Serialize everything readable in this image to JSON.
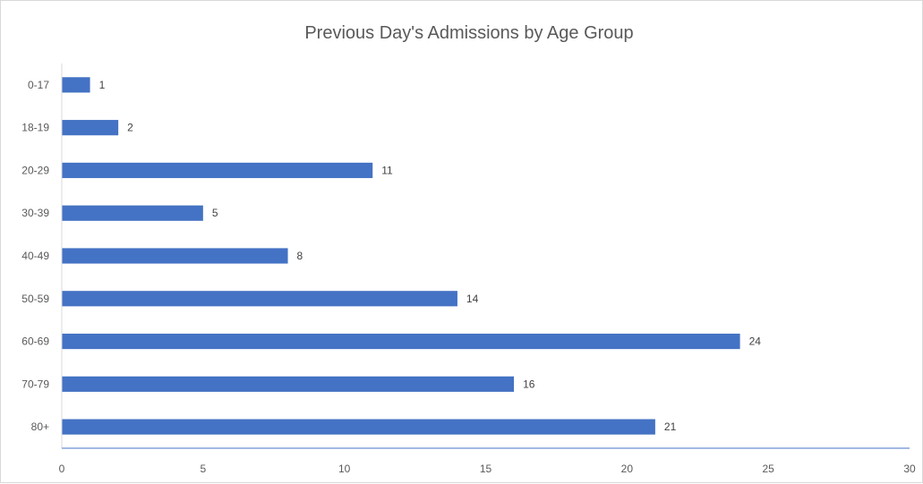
{
  "chart_data": {
    "type": "bar",
    "orientation": "horizontal",
    "title": "Previous Day's Admissions by Age Group",
    "categories": [
      "0-17",
      "18-19",
      "20-29",
      "30-39",
      "40-49",
      "50-59",
      "60-69",
      "70-79",
      "80+"
    ],
    "values": [
      1,
      2,
      11,
      5,
      8,
      14,
      24,
      16,
      21
    ],
    "xlim": [
      0,
      30
    ],
    "xticks": [
      0,
      5,
      10,
      15,
      20,
      25,
      30
    ],
    "grid": false,
    "legend": "none",
    "data_labels": true,
    "colors": {
      "bar": "#4472c4",
      "axis": "#4472c4"
    }
  }
}
